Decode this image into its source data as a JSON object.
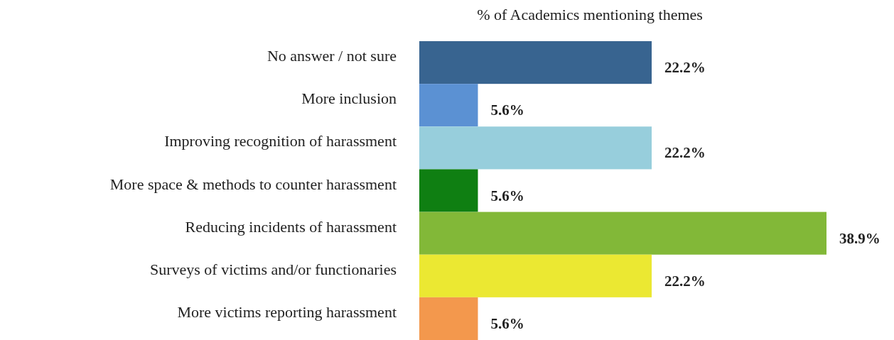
{
  "chart_data": {
    "type": "bar",
    "orientation": "horizontal",
    "title": "% of Academics mentioning themes",
    "categories": [
      "No answer / not sure",
      "More inclusion",
      "Improving recognition of harassment",
      "More space & methods to counter harassment",
      "Reducing incidents of harassment",
      "Surveys of victims and/or functionaries",
      "More victims reporting harassment"
    ],
    "values": [
      22.2,
      5.6,
      22.2,
      5.6,
      38.9,
      22.2,
      5.6
    ],
    "value_labels": [
      "22.2%",
      "5.6%",
      "22.2%",
      "5.6%",
      "38.9%",
      "22.2%",
      "5.6%"
    ],
    "colors": [
      "#386490",
      "#5b91d3",
      "#97cedc",
      "#0f7f12",
      "#82b838",
      "#ebe832",
      "#f3984d"
    ]
  }
}
